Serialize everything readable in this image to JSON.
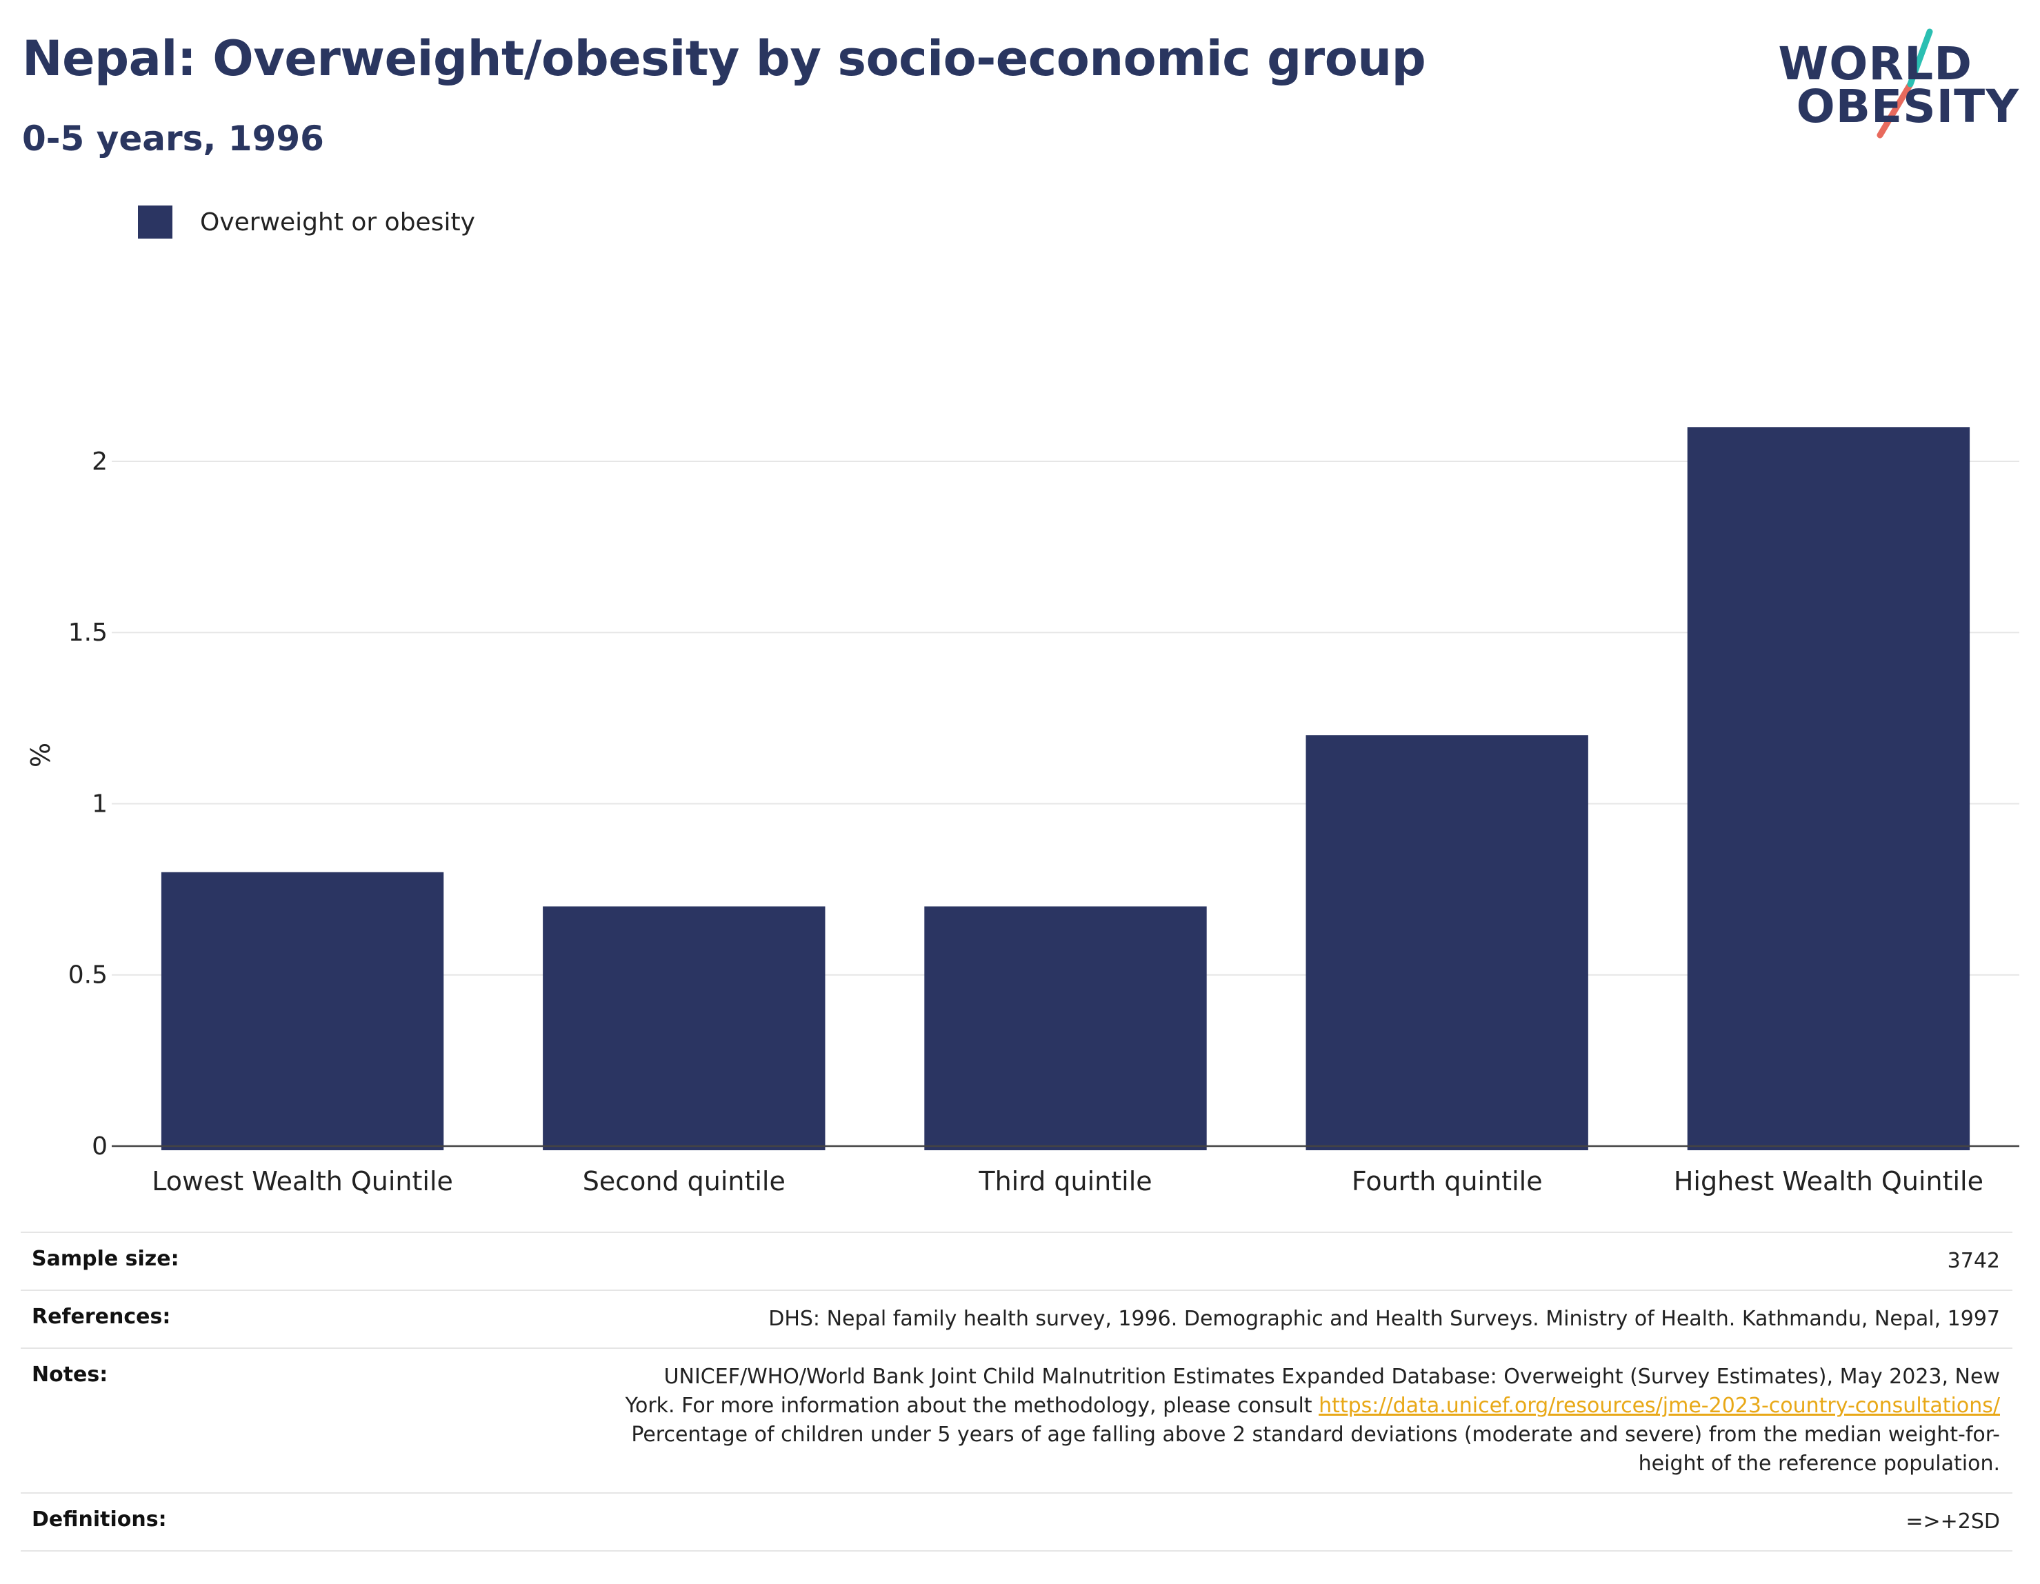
{
  "header": {
    "title": "Nepal: Overweight/obesity by socio-economic group",
    "subtitle": "0-5 years, 1996"
  },
  "logo": {
    "line1": "WORLD",
    "line2": "OBESITY"
  },
  "colors": {
    "bar": "#2b3562",
    "accent_teal": "#2bbfb2",
    "accent_coral": "#e86a5d",
    "link": "#e8a817"
  },
  "chart_data": {
    "type": "bar",
    "categories": [
      "Lowest Wealth Quintile",
      "Second quintile",
      "Third quintile",
      "Fourth quintile",
      "Highest Wealth Quintile"
    ],
    "series": [
      {
        "name": "Overweight or obesity",
        "values": [
          0.8,
          0.7,
          0.7,
          1.2,
          2.1
        ]
      }
    ],
    "ylabel": "%",
    "ylim": [
      0,
      2.3
    ],
    "yticks": [
      0,
      0.5,
      1,
      1.5,
      2
    ],
    "ytick_labels": [
      "0",
      "0.5",
      "1",
      "1.5",
      "2"
    ],
    "grid": true,
    "legend_position": "top-left"
  },
  "info": {
    "sample_size_label": "Sample size:",
    "sample_size_value": "3742",
    "references_label": "References:",
    "references_value": "DHS: Nepal family health survey, 1996. Demographic and Health Surveys. Ministry of Health. Kathmandu, Nepal, 1997",
    "notes_label": "Notes:",
    "notes_line1": "UNICEF/WHO/World Bank Joint Child Malnutrition Estimates Expanded Database: Overweight (Survey Estimates), May 2023, New",
    "notes_line2_prefix": "York. For more information about the methodology, please consult ",
    "notes_link": "https://data.unicef.org/resources/jme-2023-country-consultations/",
    "notes_line3": "Percentage of children under 5 years of age falling above 2 standard deviations (moderate and severe) from the median weight-for-",
    "notes_line4": "height of the reference population.",
    "definitions_label": "Definitions:",
    "definitions_value": "=>+2SD"
  }
}
